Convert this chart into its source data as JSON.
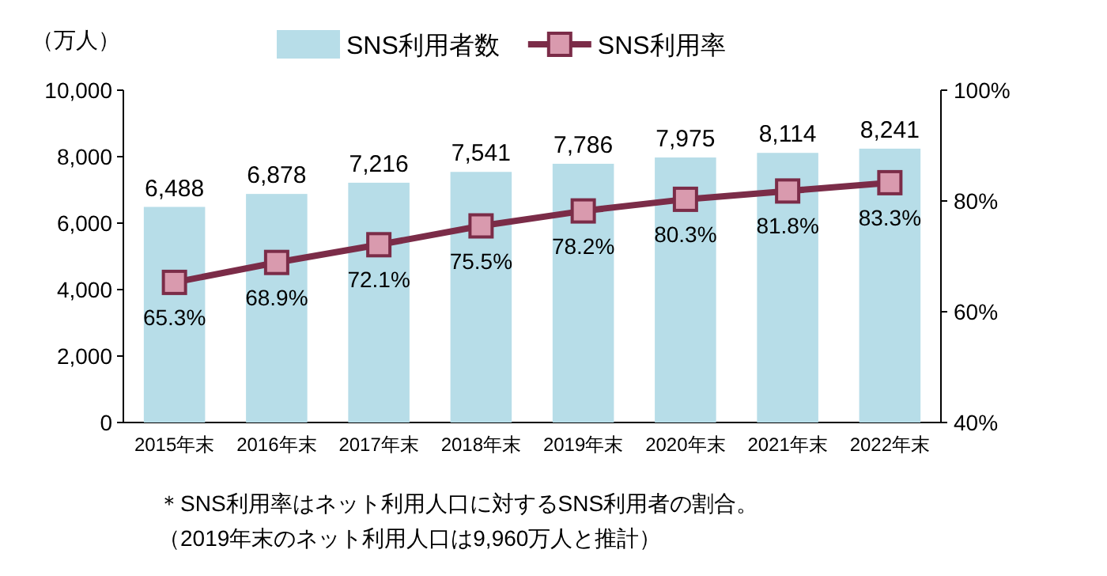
{
  "chart_data": {
    "type": "bar",
    "ylabel": "（万人）",
    "categories": [
      "2015年末",
      "2016年末",
      "2017年末",
      "2018年末",
      "2019年末",
      "2020年末",
      "2021年末",
      "2022年末"
    ],
    "series": [
      {
        "name": "SNS利用者数",
        "color": "#b7dde8",
        "values": [
          6488,
          6878,
          7216,
          7541,
          7786,
          7975,
          8114,
          8241
        ],
        "value_labels": [
          "6,488",
          "6,878",
          "7,216",
          "7,541",
          "7,786",
          "7,975",
          "8,114",
          "8,241"
        ]
      },
      {
        "name": "SNS利用率",
        "type": "line",
        "axis": "y2",
        "color": "#7b2c48",
        "values": [
          65.3,
          68.9,
          72.1,
          75.5,
          78.2,
          80.3,
          81.8,
          83.3
        ],
        "value_labels": [
          "65.3%",
          "68.9%",
          "72.1%",
          "75.5%",
          "78.2%",
          "80.3%",
          "81.8%",
          "83.3%"
        ]
      }
    ],
    "marker": "square",
    "ylim": [
      0,
      10000
    ],
    "yticks": [
      0,
      {
        "value": 2000,
        "label": "2,000"
      },
      {
        "value": 4000,
        "label": "4,000"
      },
      {
        "value": 6000,
        "label": "6,000"
      },
      {
        "value": 8000,
        "label": "8,000"
      },
      {
        "value": 10000,
        "label": "10,000"
      }
    ],
    "y2lim": [
      40,
      100
    ],
    "y2ticks": [
      {
        "value": 40,
        "label": "40%"
      },
      {
        "value": 60,
        "label": "60%"
      },
      {
        "value": 80,
        "label": "80%"
      },
      {
        "value": 100,
        "label": "100%"
      }
    ],
    "legend": "top",
    "annotations": [
      "＊SNS利用率はネット利用人口に対するSNS利用者の割合。",
      "（2019年末のネット利用人口は9,960万人と推計）"
    ]
  }
}
